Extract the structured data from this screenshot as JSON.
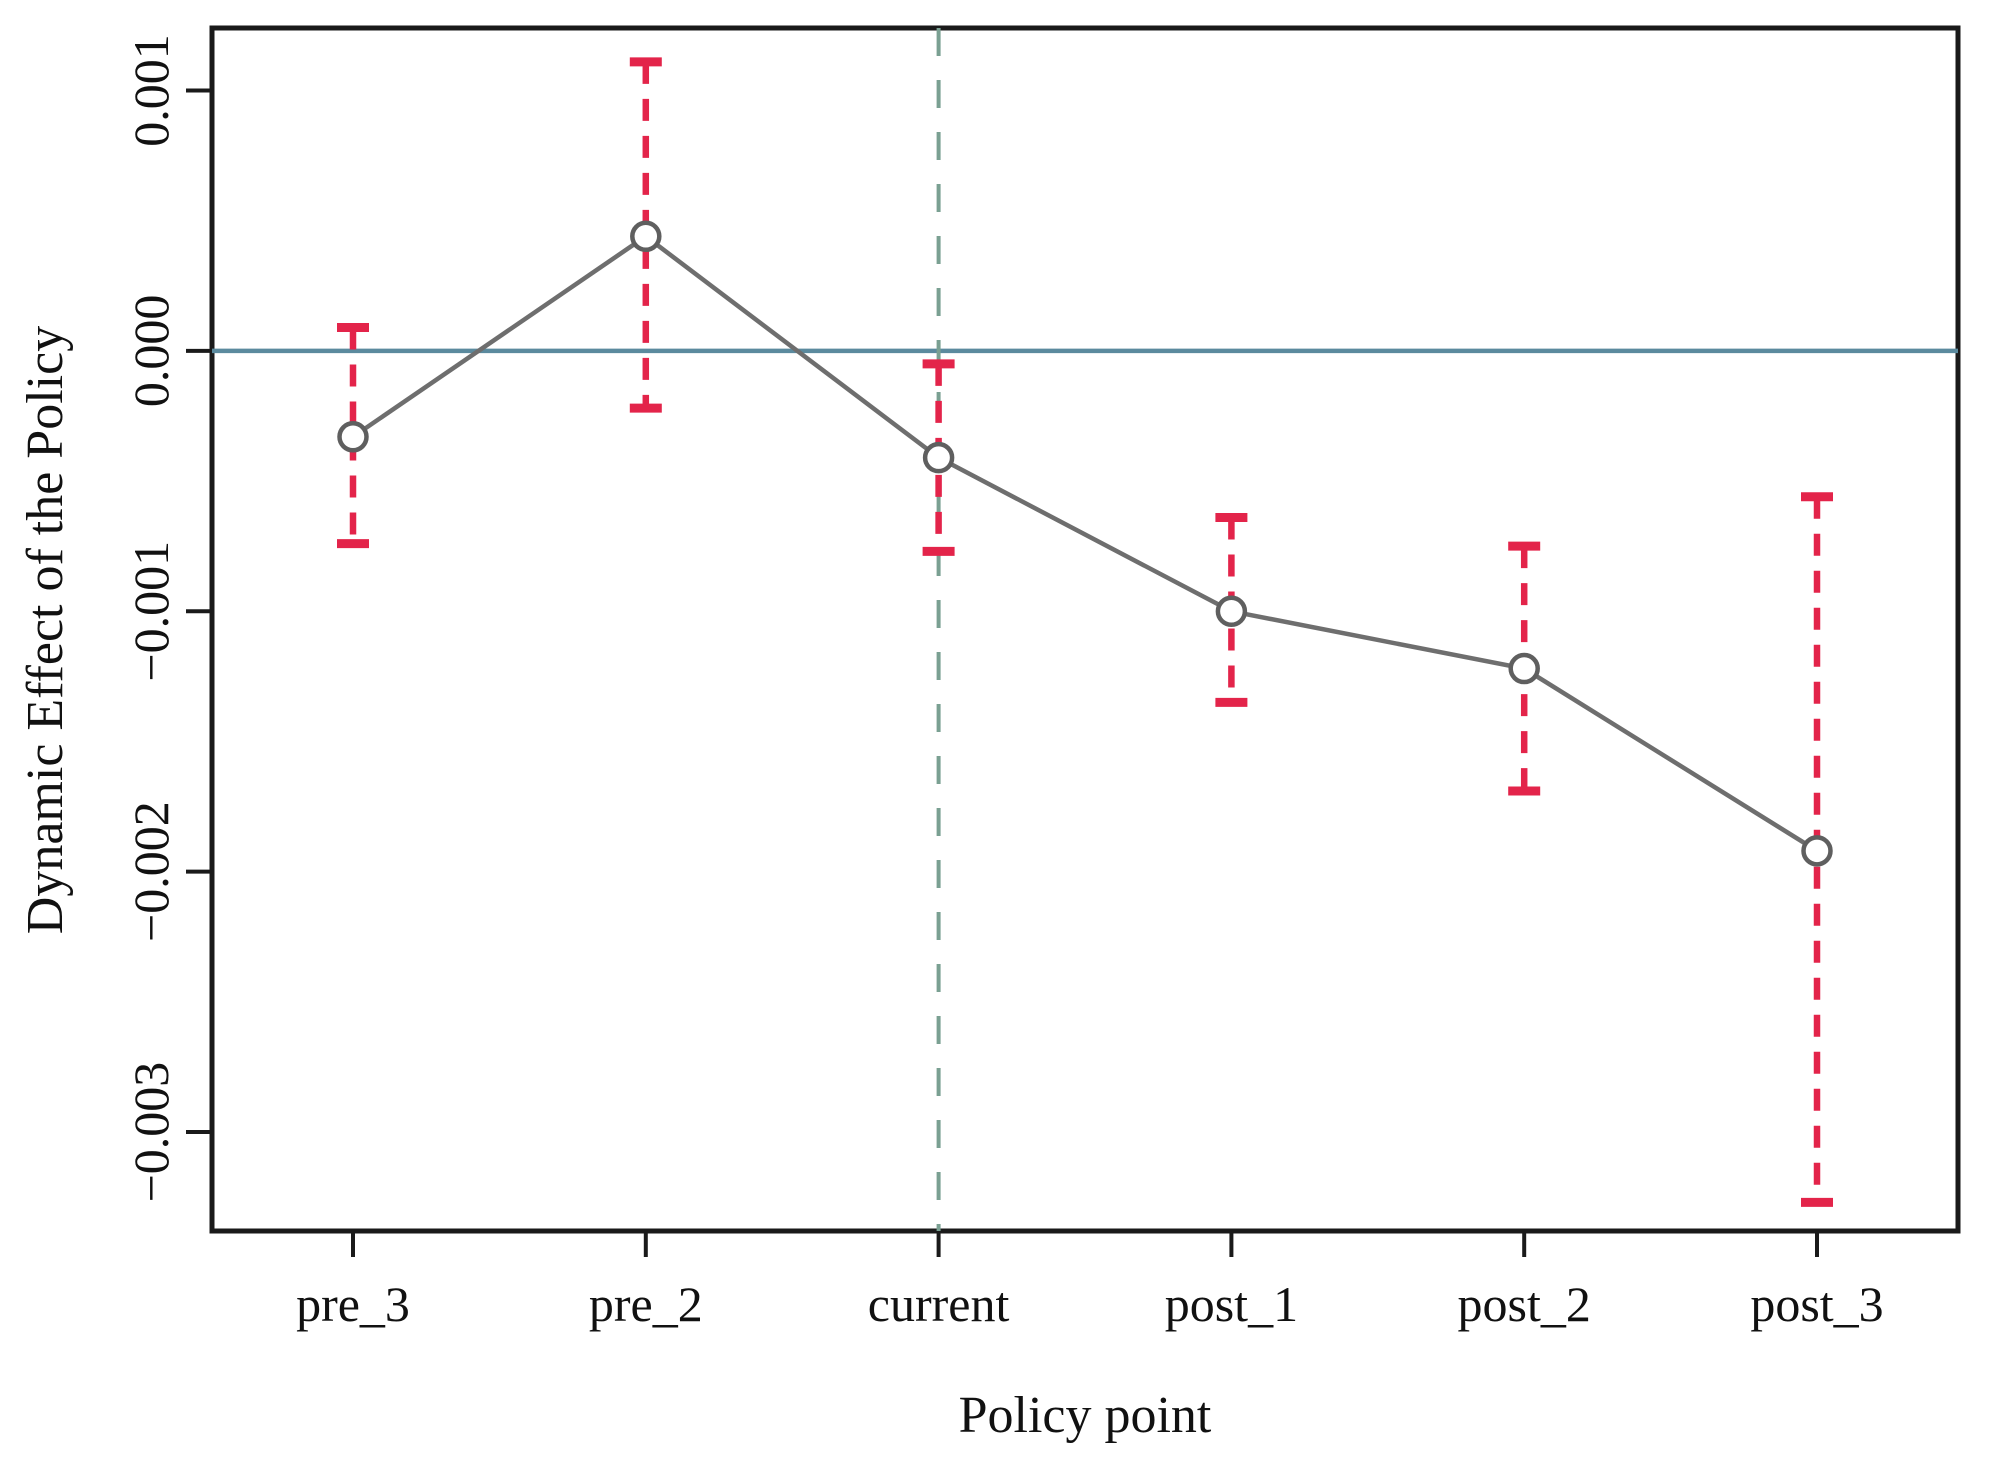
{
  "page": {
    "background": "#ffffff"
  },
  "chart_data": {
    "type": "line",
    "subtype": "event-study-with-error-bars",
    "title": "",
    "xlabel": "Policy point",
    "ylabel": "Dynamic Effect of the Policy",
    "categories": [
      "pre_3",
      "pre_2",
      "current",
      "post_1",
      "post_2",
      "post_3"
    ],
    "series": [
      {
        "name": "estimate",
        "values": [
          -0.00033,
          0.00044,
          -0.00041,
          -0.001,
          -0.00122,
          -0.00192
        ]
      },
      {
        "name": "ci_lower",
        "values": [
          -0.00074,
          -0.00022,
          -0.00077,
          -0.00135,
          -0.00169,
          -0.00327
        ]
      },
      {
        "name": "ci_upper",
        "values": [
          9e-05,
          0.00111,
          -5e-05,
          -0.00064,
          -0.00075,
          -0.00056
        ]
      }
    ],
    "reference_lines": {
      "zero_line_y": 0,
      "event_line_category": "current"
    },
    "ylim": [
      -0.00338,
      0.00124
    ],
    "yticks": {
      "values": [
        0.001,
        0,
        -0.001,
        -0.002,
        -0.003
      ],
      "labels": [
        "0.001",
        "0.000",
        "−0.001",
        "−0.002",
        "−0.003"
      ]
    },
    "grid": false,
    "legend": "none",
    "colors": {
      "errorbar": "#e3244a",
      "trend_line": "#6e6e6e",
      "marker_stroke": "#5f5f5f",
      "marker_fill": "#ffffff",
      "zero_line": "#5b8a9e",
      "event_line": "#7aa092",
      "axis": "#1a1a1a",
      "text": "#111111"
    }
  }
}
